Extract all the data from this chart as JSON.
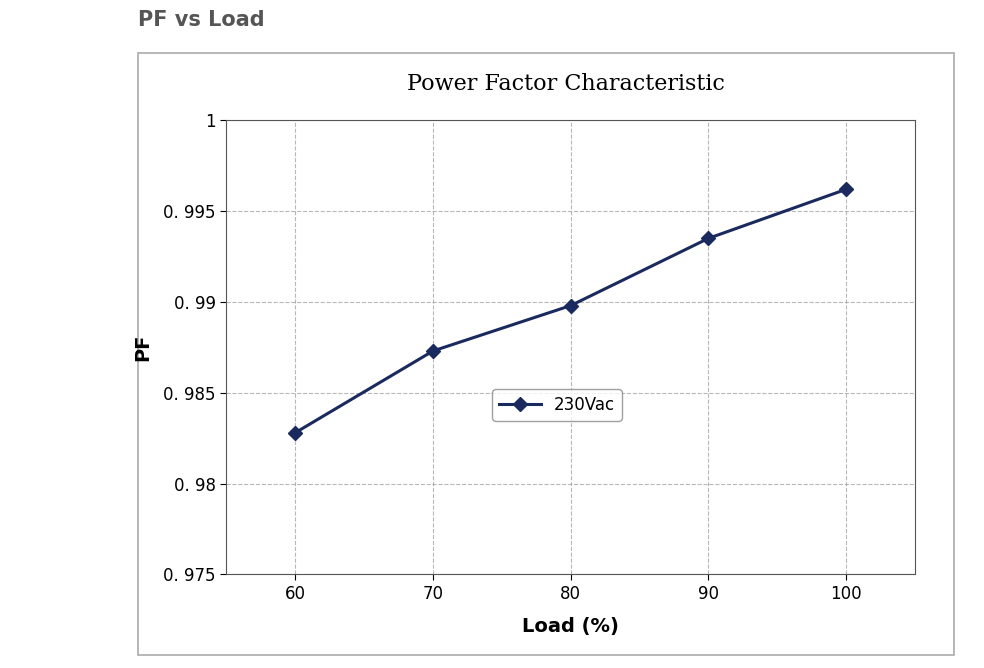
{
  "title": "Power Factor Characteristic",
  "suptitle": "PF vs Load",
  "xlabel": "Load (%)",
  "ylabel": "PF",
  "x": [
    60,
    70,
    80,
    90,
    100
  ],
  "y": [
    0.9828,
    0.9873,
    0.9898,
    0.9935,
    0.9962
  ],
  "ylim": [
    0.975,
    1.0
  ],
  "xlim": [
    55,
    105
  ],
  "yticks": [
    0.975,
    0.98,
    0.985,
    0.99,
    0.995,
    1.0
  ],
  "xticks": [
    60,
    70,
    80,
    90,
    100
  ],
  "line_color": "#1a2a5e",
  "marker": "D",
  "marker_color": "#1a2a5e",
  "legend_label": "230Vac",
  "line_width": 2.2,
  "marker_size": 7,
  "grid_color": "#999999",
  "grid_style": "--",
  "background_color": "#ffffff",
  "outer_background": "#ffffff",
  "title_fontsize": 16,
  "suptitle_fontsize": 15,
  "axis_label_fontsize": 14,
  "tick_fontsize": 12,
  "legend_fontsize": 12,
  "outer_box_color": "#cccccc"
}
